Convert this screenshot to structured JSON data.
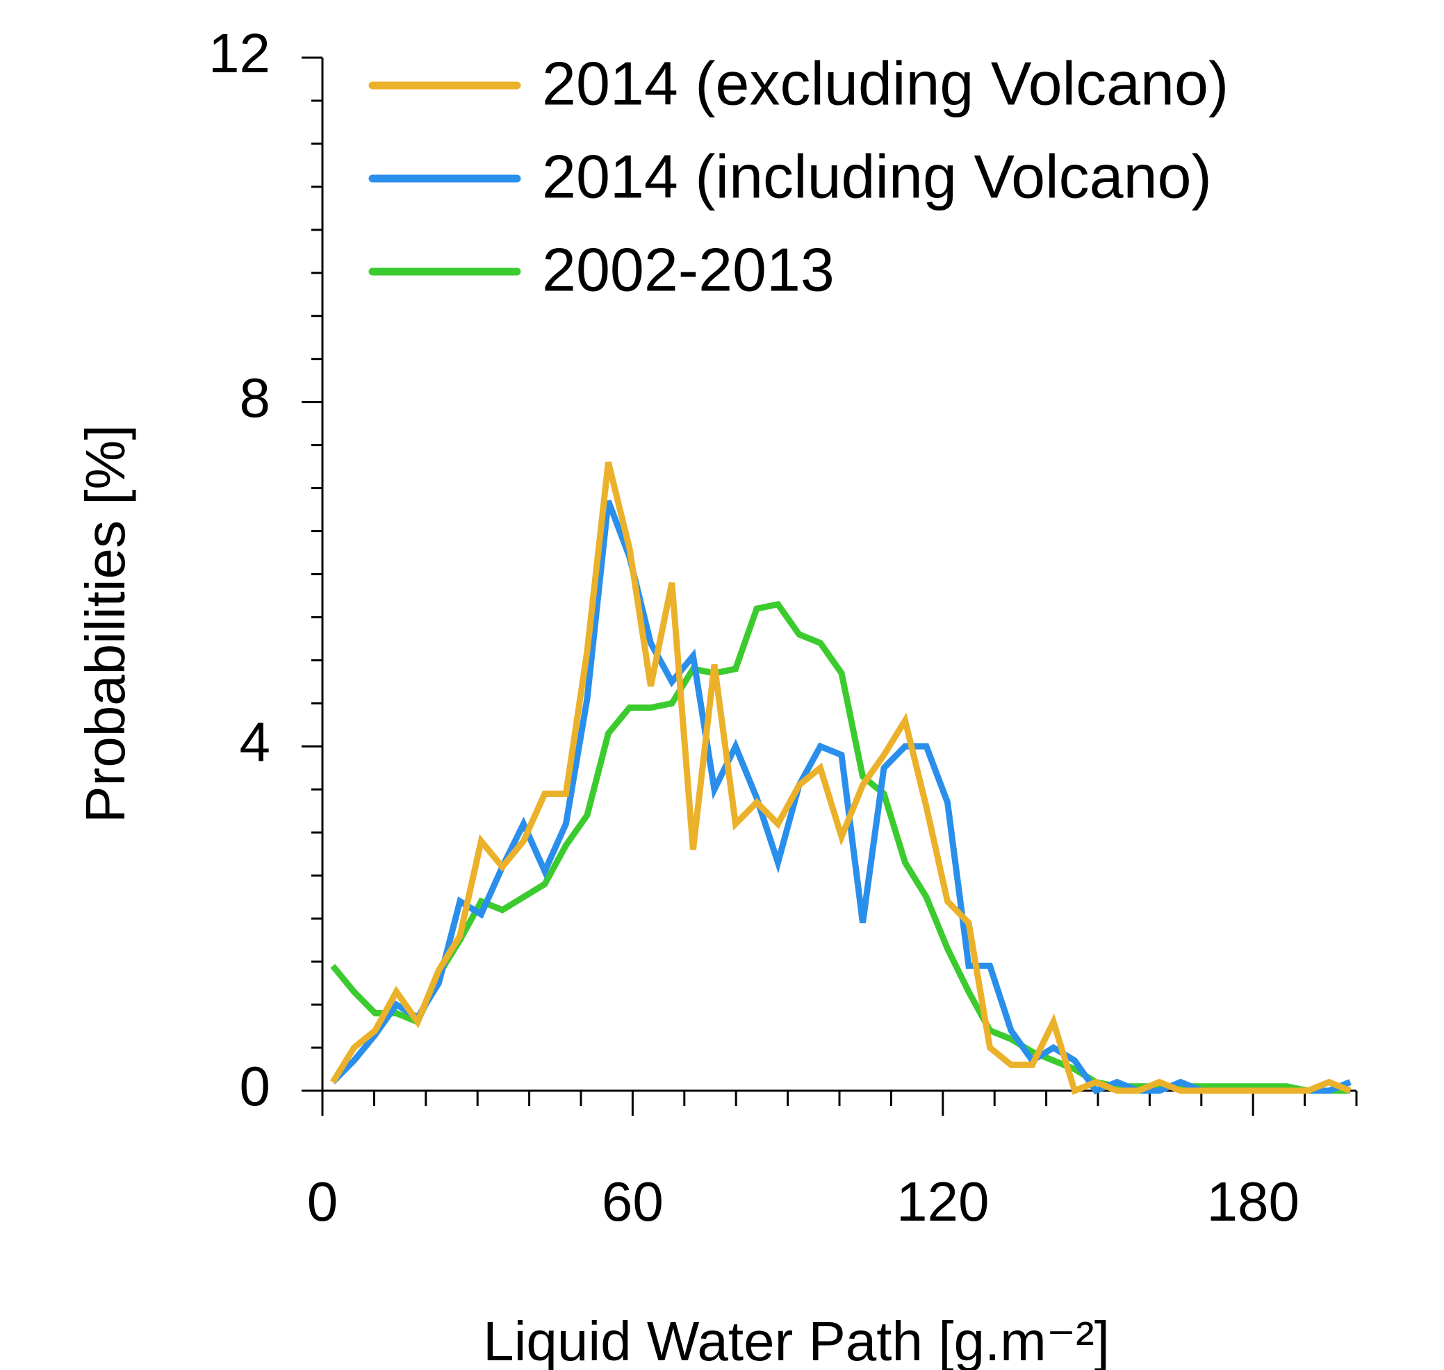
{
  "chart_data": {
    "type": "line",
    "xlabel": "Liquid Water Path [g.m⁻²]",
    "ylabel": "Probabilities [%]",
    "x": [
      2,
      6.1,
      10.2,
      14.3,
      18.4,
      22.5,
      26.6,
      30.7,
      34.8,
      38.9,
      43,
      47.1,
      51.2,
      55.3,
      59.4,
      63.5,
      67.6,
      71.7,
      75.8,
      79.9,
      84,
      88.1,
      92.2,
      96.3,
      100.4,
      104.5,
      108.6,
      112.7,
      116.8,
      120.9,
      125,
      129.1,
      133.2,
      137.3,
      141.4,
      145.5,
      149.6,
      153.7,
      157.8,
      161.9,
      166,
      170.1,
      174.2,
      178.3,
      182.4,
      186.5,
      190.6,
      194.7,
      198.8
    ],
    "series": [
      {
        "name": "2014 (excluding Volcano)",
        "color": "#ebb12a",
        "values": [
          0.1,
          0.5,
          0.7,
          1.15,
          0.8,
          1.4,
          1.8,
          2.9,
          2.6,
          2.9,
          3.45,
          3.45,
          5.1,
          7.3,
          6.3,
          4.7,
          5.9,
          2.8,
          4.95,
          3.1,
          3.35,
          3.1,
          3.55,
          3.75,
          2.95,
          3.55,
          3.9,
          4.3,
          3.3,
          2.2,
          1.95,
          0.5,
          0.3,
          0.3,
          0.8,
          0,
          0.1,
          0,
          0,
          0.1,
          0,
          0,
          0,
          0,
          0,
          0,
          0,
          0.1,
          0
        ]
      },
      {
        "name": "2014 (including Volcano)",
        "color": "#2a8feb",
        "values": [
          0.1,
          0.35,
          0.65,
          1.0,
          0.85,
          1.25,
          2.2,
          2.05,
          2.6,
          3.1,
          2.55,
          3.1,
          4.55,
          6.85,
          6.2,
          5.2,
          4.75,
          5.05,
          3.5,
          4.0,
          3.4,
          2.65,
          3.55,
          4.0,
          3.9,
          1.95,
          3.75,
          4.0,
          4.0,
          3.35,
          1.45,
          1.45,
          0.7,
          0.35,
          0.5,
          0.35,
          0,
          0.1,
          0,
          0,
          0.1,
          0,
          0,
          0,
          0,
          0,
          0,
          0,
          0.1
        ]
      },
      {
        "name": "2002-2013",
        "color": "#3ccb2e",
        "values": [
          1.45,
          1.15,
          0.9,
          0.9,
          0.8,
          1.35,
          1.75,
          2.2,
          2.1,
          2.25,
          2.4,
          2.85,
          3.2,
          4.15,
          4.45,
          4.45,
          4.5,
          4.9,
          4.85,
          4.9,
          5.6,
          5.65,
          5.3,
          5.2,
          4.85,
          3.65,
          3.45,
          2.65,
          2.25,
          1.65,
          1.15,
          0.7,
          0.6,
          0.45,
          0.35,
          0.25,
          0.1,
          0.05,
          0.05,
          0.05,
          0.05,
          0.05,
          0.05,
          0.05,
          0.05,
          0.05,
          0,
          0,
          0
        ]
      }
    ],
    "xlim": [
      0,
      200
    ],
    "ylim": [
      0,
      12
    ],
    "xticks": [
      0,
      60,
      120,
      180
    ],
    "yticks": [
      0,
      4,
      8,
      12
    ],
    "xminorticks": [
      10,
      20,
      30,
      40,
      50,
      70,
      80,
      90,
      100,
      110,
      130,
      140,
      150,
      160,
      170,
      190,
      200
    ],
    "yminorticks": [
      0.5,
      1,
      1.5,
      2,
      2.5,
      3,
      3.5,
      4.5,
      5,
      5.5,
      6,
      6.5,
      7,
      7.5,
      8.5,
      9,
      9.5,
      10,
      10.5,
      11,
      11.5
    ],
    "grid": false,
    "legend": "upper right"
  }
}
